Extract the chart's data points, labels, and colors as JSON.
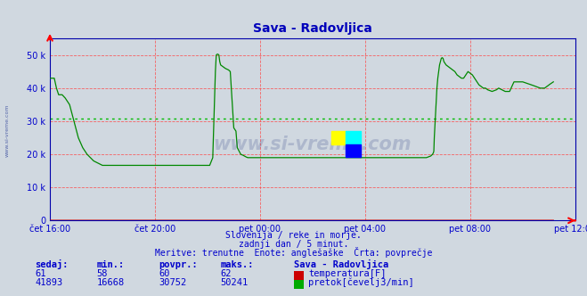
{
  "title": "Sava - Radovljica",
  "bg_color": "#d0d8e0",
  "plot_bg_color": "#d0d8e0",
  "grid_color": "#ff4444",
  "avg_line_color": "#00bb00",
  "avg_value": 30752,
  "ymax": 55000,
  "yticks": [
    0,
    10000,
    20000,
    30000,
    40000,
    50000
  ],
  "ytick_labels": [
    "0",
    "10 k",
    "20 k",
    "30 k",
    "40 k",
    "50 k"
  ],
  "title_color": "#0000bb",
  "text_color": "#0000cc",
  "temp_color": "#cc0000",
  "flow_color": "#008800",
  "watermark": "www.si-vreme.com",
  "subtitle1": "Slovenija / reke in morje.",
  "subtitle2": "zadnji dan / 5 minut.",
  "subtitle3": "Meritve: trenutne  Enote: anglešaške  Črta: povprečje",
  "legend_title": "Sava - Radovljica",
  "legend_rows": [
    {
      "label": "temperatura[F]",
      "color": "#cc0000",
      "sedaj": "61",
      "min": "58",
      "povpr": "60",
      "maks": "62"
    },
    {
      "label": "pretok[čevelj3/min]",
      "color": "#00aa00",
      "sedaj": "41893",
      "min": "16668",
      "povpr": "30752",
      "maks": "50241"
    }
  ],
  "xtick_positions": [
    0,
    240,
    480,
    720,
    960,
    1200
  ],
  "xtick_labels": [
    "čet 16:00",
    "čet 20:00",
    "pet 00:00",
    "pet 04:00",
    "pet 08:00",
    "pet 12:00"
  ],
  "sidebar_text": "www.si-vreme.com",
  "flow_keyframes": [
    [
      0,
      43000
    ],
    [
      10,
      43000
    ],
    [
      15,
      40000
    ],
    [
      20,
      38000
    ],
    [
      28,
      38000
    ],
    [
      35,
      37000
    ],
    [
      45,
      35000
    ],
    [
      55,
      30000
    ],
    [
      65,
      25000
    ],
    [
      75,
      22000
    ],
    [
      85,
      20000
    ],
    [
      100,
      18000
    ],
    [
      120,
      16668
    ],
    [
      287,
      16668
    ],
    [
      288,
      16668
    ],
    [
      289,
      16668
    ],
    [
      290,
      16668
    ],
    [
      300,
      16668
    ],
    [
      336,
      16668
    ],
    [
      338,
      16668
    ],
    [
      340,
      16668
    ],
    [
      342,
      16668
    ],
    [
      344,
      16668
    ],
    [
      346,
      16668
    ],
    [
      347,
      16668
    ],
    [
      348,
      16668
    ],
    [
      349,
      16668
    ],
    [
      350,
      16668
    ],
    [
      351,
      16668
    ],
    [
      352,
      16668
    ],
    [
      353,
      16668
    ],
    [
      354,
      16668
    ],
    [
      356,
      16668
    ],
    [
      360,
      16668
    ],
    [
      365,
      16668
    ],
    [
      372,
      19000
    ],
    [
      374,
      28000
    ],
    [
      376,
      37000
    ],
    [
      378,
      45000
    ],
    [
      380,
      50000
    ],
    [
      382,
      50241
    ],
    [
      384,
      50241
    ],
    [
      386,
      50000
    ],
    [
      388,
      48000
    ],
    [
      390,
      47000
    ],
    [
      395,
      46500
    ],
    [
      400,
      46000
    ],
    [
      408,
      45500
    ],
    [
      412,
      45000
    ],
    [
      420,
      28000
    ],
    [
      425,
      27000
    ],
    [
      428,
      22000
    ],
    [
      432,
      21000
    ],
    [
      436,
      20000
    ],
    [
      440,
      19800
    ],
    [
      444,
      19500
    ],
    [
      448,
      19200
    ],
    [
      452,
      19000
    ],
    [
      460,
      19000
    ],
    [
      480,
      19000
    ],
    [
      520,
      19000
    ],
    [
      560,
      19000
    ],
    [
      600,
      19000
    ],
    [
      640,
      19000
    ],
    [
      680,
      19000
    ],
    [
      720,
      19000
    ],
    [
      760,
      19000
    ],
    [
      800,
      19000
    ],
    [
      840,
      19000
    ],
    [
      860,
      19000
    ],
    [
      870,
      19500
    ],
    [
      874,
      20000
    ],
    [
      876,
      20500
    ],
    [
      877,
      21000
    ],
    [
      878,
      25000
    ],
    [
      880,
      30000
    ],
    [
      882,
      35000
    ],
    [
      884,
      40000
    ],
    [
      886,
      43000
    ],
    [
      888,
      45000
    ],
    [
      890,
      47000
    ],
    [
      892,
      48000
    ],
    [
      894,
      49000
    ],
    [
      896,
      49200
    ],
    [
      898,
      49000
    ],
    [
      900,
      48000
    ],
    [
      905,
      47000
    ],
    [
      910,
      46500
    ],
    [
      915,
      46000
    ],
    [
      920,
      45500
    ],
    [
      925,
      45000
    ],
    [
      930,
      44000
    ],
    [
      935,
      43500
    ],
    [
      940,
      43000
    ],
    [
      945,
      43000
    ],
    [
      950,
      44000
    ],
    [
      955,
      45000
    ],
    [
      960,
      44500
    ],
    [
      965,
      44000
    ],
    [
      970,
      43000
    ],
    [
      975,
      42000
    ],
    [
      980,
      41000
    ],
    [
      985,
      40500
    ],
    [
      990,
      40000
    ],
    [
      995,
      40000
    ],
    [
      1000,
      39500
    ],
    [
      1010,
      39000
    ],
    [
      1020,
      39500
    ],
    [
      1025,
      40000
    ],
    [
      1040,
      39000
    ],
    [
      1050,
      39000
    ],
    [
      1060,
      41893
    ],
    [
      1080,
      41893
    ],
    [
      1100,
      41000
    ],
    [
      1110,
      40500
    ],
    [
      1120,
      40000
    ],
    [
      1130,
      40000
    ],
    [
      1140,
      41000
    ],
    [
      1150,
      41893
    ]
  ]
}
